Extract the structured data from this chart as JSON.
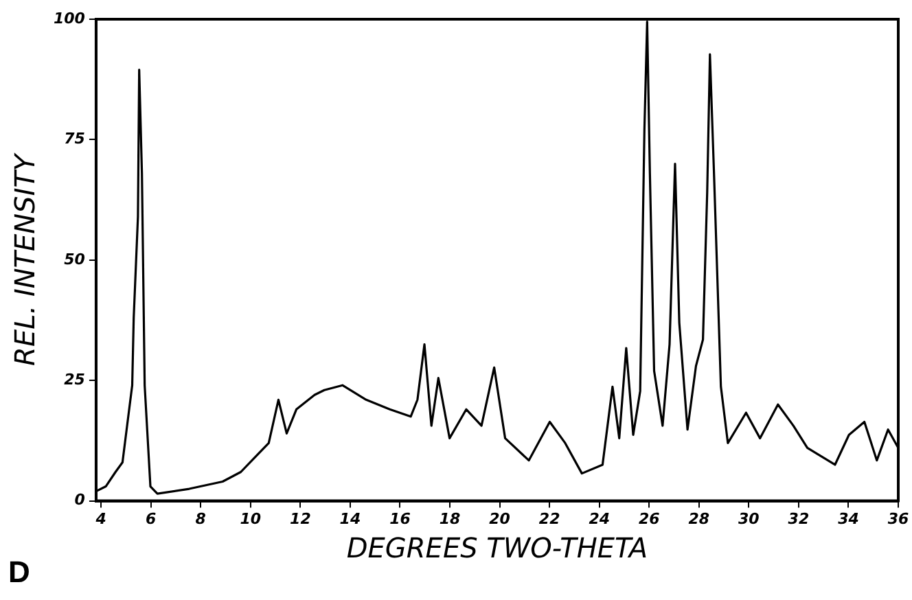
{
  "chart_data": {
    "type": "line",
    "xlabel": "DEGREES TWO-THETA",
    "ylabel": "REL. INTENSITY",
    "annotations": [
      "D"
    ],
    "xlim": [
      3.8,
      36
    ],
    "xticks": [
      4,
      6,
      8,
      10,
      12,
      14,
      16,
      18,
      20,
      22,
      24,
      26,
      28,
      30,
      32,
      34,
      36
    ],
    "ylim": [
      0,
      100
    ],
    "yticks": [
      0,
      25,
      50,
      75,
      100
    ],
    "grid": false,
    "legend": false,
    "marker": "none",
    "line_style": "solid",
    "series": [
      {
        "color": "#000000",
        "x": [
          3.8,
          4.19,
          4.58,
          4.86,
          5.03,
          5.25,
          5.31,
          5.48,
          5.53,
          5.64,
          5.75,
          5.98,
          6.26,
          7.54,
          8.88,
          9.61,
          10.17,
          10.73,
          11.12,
          11.45,
          11.84,
          12.57,
          12.96,
          13.69,
          14.64,
          15.59,
          16.43,
          16.7,
          16.98,
          17.26,
          17.54,
          17.99,
          18.66,
          19.27,
          19.78,
          20.22,
          21.17,
          22.01,
          22.63,
          23.3,
          24.13,
          24.53,
          24.8,
          25.08,
          25.36,
          25.64,
          25.81,
          25.92,
          26.03,
          26.2,
          26.54,
          26.82,
          27.04,
          27.21,
          27.54,
          27.88,
          28.16,
          28.33,
          28.44,
          28.6,
          28.88,
          29.16,
          29.89,
          30.45,
          31.17,
          31.79,
          32.35,
          33.46,
          34.02,
          34.64,
          35.14,
          35.59,
          36.0
        ],
        "values": [
          2,
          3,
          6,
          8,
          15,
          24,
          38,
          59,
          89.5,
          68,
          24,
          3,
          1.5,
          2.5,
          4,
          6,
          9,
          12,
          21,
          14,
          19,
          22,
          23,
          24,
          21,
          19,
          17.5,
          21,
          32.5,
          15.6,
          25.5,
          13,
          19,
          15.6,
          27.7,
          13,
          8.4,
          16.4,
          12,
          5.7,
          7.5,
          23.7,
          13,
          31.7,
          13.7,
          22.8,
          77,
          99.5,
          68,
          27,
          15.6,
          32.5,
          70,
          37,
          14.8,
          28,
          33.5,
          64,
          92.7,
          68.5,
          23.7,
          12,
          18.3,
          13,
          20,
          15.6,
          11,
          7.5,
          13.7,
          16.4,
          8.4,
          14.8,
          11
        ]
      }
    ]
  }
}
